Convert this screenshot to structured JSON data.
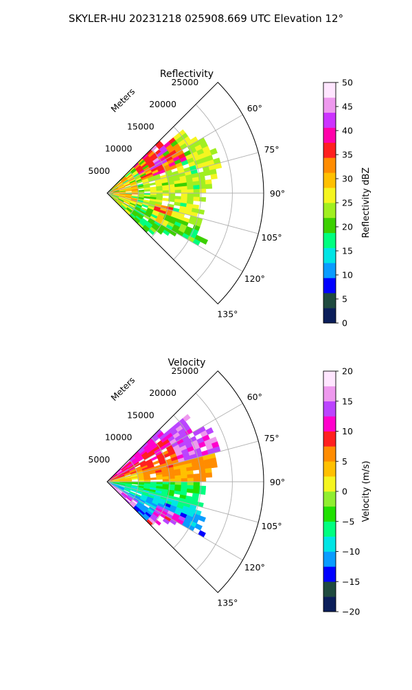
{
  "figure": {
    "title": "SKYLER-HU  20231218  025908.669 UTC Elevation 12°"
  },
  "chart_data": [
    {
      "type": "heatmap",
      "projection": "polar-sector",
      "title": "Reflectivity",
      "range_axis_label": "Meters",
      "range_ticks": [
        5000,
        10000,
        15000,
        20000,
        25000
      ],
      "range_tick_labels": [
        "5000",
        "10000",
        "15000",
        "20000",
        "25000"
      ],
      "range_limit": [
        0,
        25000
      ],
      "azimuth_limit": [
        45,
        135
      ],
      "azimuth_ticks": [
        60,
        75,
        90,
        105,
        120,
        135
      ],
      "azimuth_tick_labels": [
        "60°",
        "75°",
        "90°",
        "105°",
        "120°",
        "135°"
      ],
      "grid": true,
      "colorbar": {
        "label": "Reflectivity dBZ",
        "min": 0,
        "max": 50,
        "ticks": [
          0,
          5,
          10,
          15,
          20,
          25,
          30,
          35,
          40,
          45,
          50
        ],
        "tick_labels": [
          "0",
          "5",
          "10",
          "15",
          "20",
          "25",
          "30",
          "35",
          "40",
          "45",
          "50"
        ],
        "colors": [
          "#0b1e5a",
          "#1f4a3f",
          "#0000ff",
          "#0a9cff",
          "#00e5e5",
          "#00ff7f",
          "#3cd000",
          "#a0ef20",
          "#f5f520",
          "#ffc000",
          "#ff8c00",
          "#ff2020",
          "#ff00aa",
          "#cc33ff",
          "#ee99ee",
          "#ffe6ff"
        ]
      }
    },
    {
      "type": "heatmap",
      "projection": "polar-sector",
      "title": "Velocity",
      "range_axis_label": "Meters",
      "range_ticks": [
        5000,
        10000,
        15000,
        20000,
        25000
      ],
      "range_tick_labels": [
        "5000",
        "10000",
        "15000",
        "20000",
        "25000"
      ],
      "range_limit": [
        0,
        25000
      ],
      "azimuth_limit": [
        45,
        135
      ],
      "azimuth_ticks": [
        60,
        75,
        90,
        105,
        120,
        135
      ],
      "azimuth_tick_labels": [
        "60°",
        "75°",
        "90°",
        "105°",
        "120°",
        "135°"
      ],
      "grid": true,
      "colorbar": {
        "label": "Velocity (m/s)",
        "min": -20,
        "max": 20,
        "ticks": [
          -20,
          -15,
          -10,
          -5,
          0,
          5,
          10,
          15,
          20
        ],
        "tick_labels": [
          "−20",
          "−15",
          "−10",
          "−5",
          "0",
          "5",
          "10",
          "15",
          "20"
        ],
        "colors": [
          "#0b1e5a",
          "#1f4a3f",
          "#0000ff",
          "#0a9cff",
          "#00e5e5",
          "#00ff80",
          "#20e000",
          "#90ee30",
          "#f5f520",
          "#ffc000",
          "#ff8c00",
          "#ff2020",
          "#ff00cc",
          "#bb44ff",
          "#ee99ee",
          "#ffe6ff"
        ]
      }
    }
  ]
}
